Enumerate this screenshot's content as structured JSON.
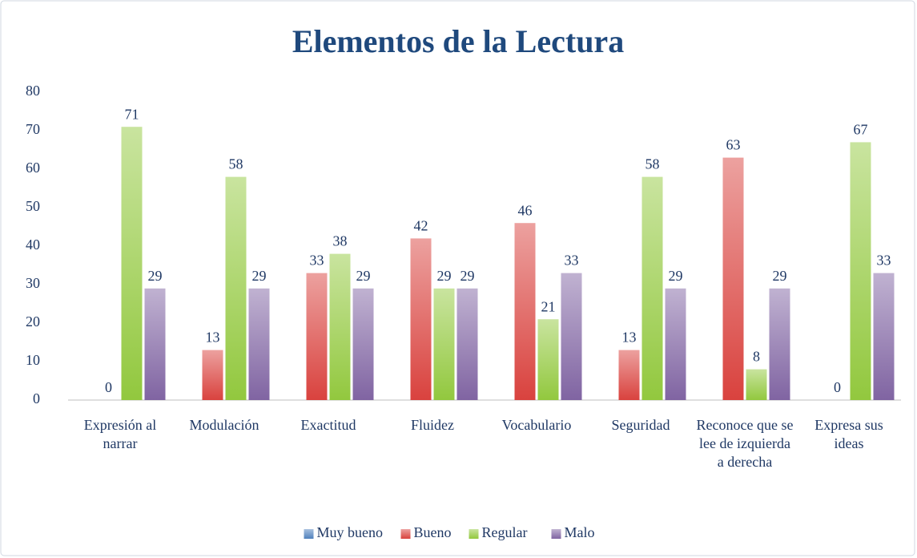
{
  "chart_data": {
    "type": "bar",
    "title": "Elementos de la Lectura",
    "categories": [
      "Expresión al narrar",
      "Modulación",
      "Exactitud",
      "Fluidez",
      "Vocabulario",
      "Seguridad",
      "Reconoce que se lee de izquierda a derecha",
      "Expresa sus ideas"
    ],
    "series": [
      {
        "name": "Muy bueno",
        "color": "#4f81bd",
        "values": [
          null,
          null,
          null,
          null,
          null,
          null,
          null,
          null
        ]
      },
      {
        "name": "Bueno",
        "color": "#d9423e",
        "values": [
          0,
          13,
          33,
          42,
          46,
          13,
          63,
          0
        ]
      },
      {
        "name": "Regular",
        "color": "#92c83e",
        "values": [
          71,
          58,
          38,
          29,
          21,
          58,
          8,
          67
        ]
      },
      {
        "name": "Malo",
        "color": "#8064a2",
        "values": [
          29,
          29,
          29,
          29,
          33,
          29,
          29,
          33
        ]
      }
    ],
    "ylim": [
      0,
      80
    ],
    "yticks": [
      0,
      10,
      20,
      30,
      40,
      50,
      60,
      70,
      80
    ],
    "grid": false,
    "legend": "bottom"
  }
}
